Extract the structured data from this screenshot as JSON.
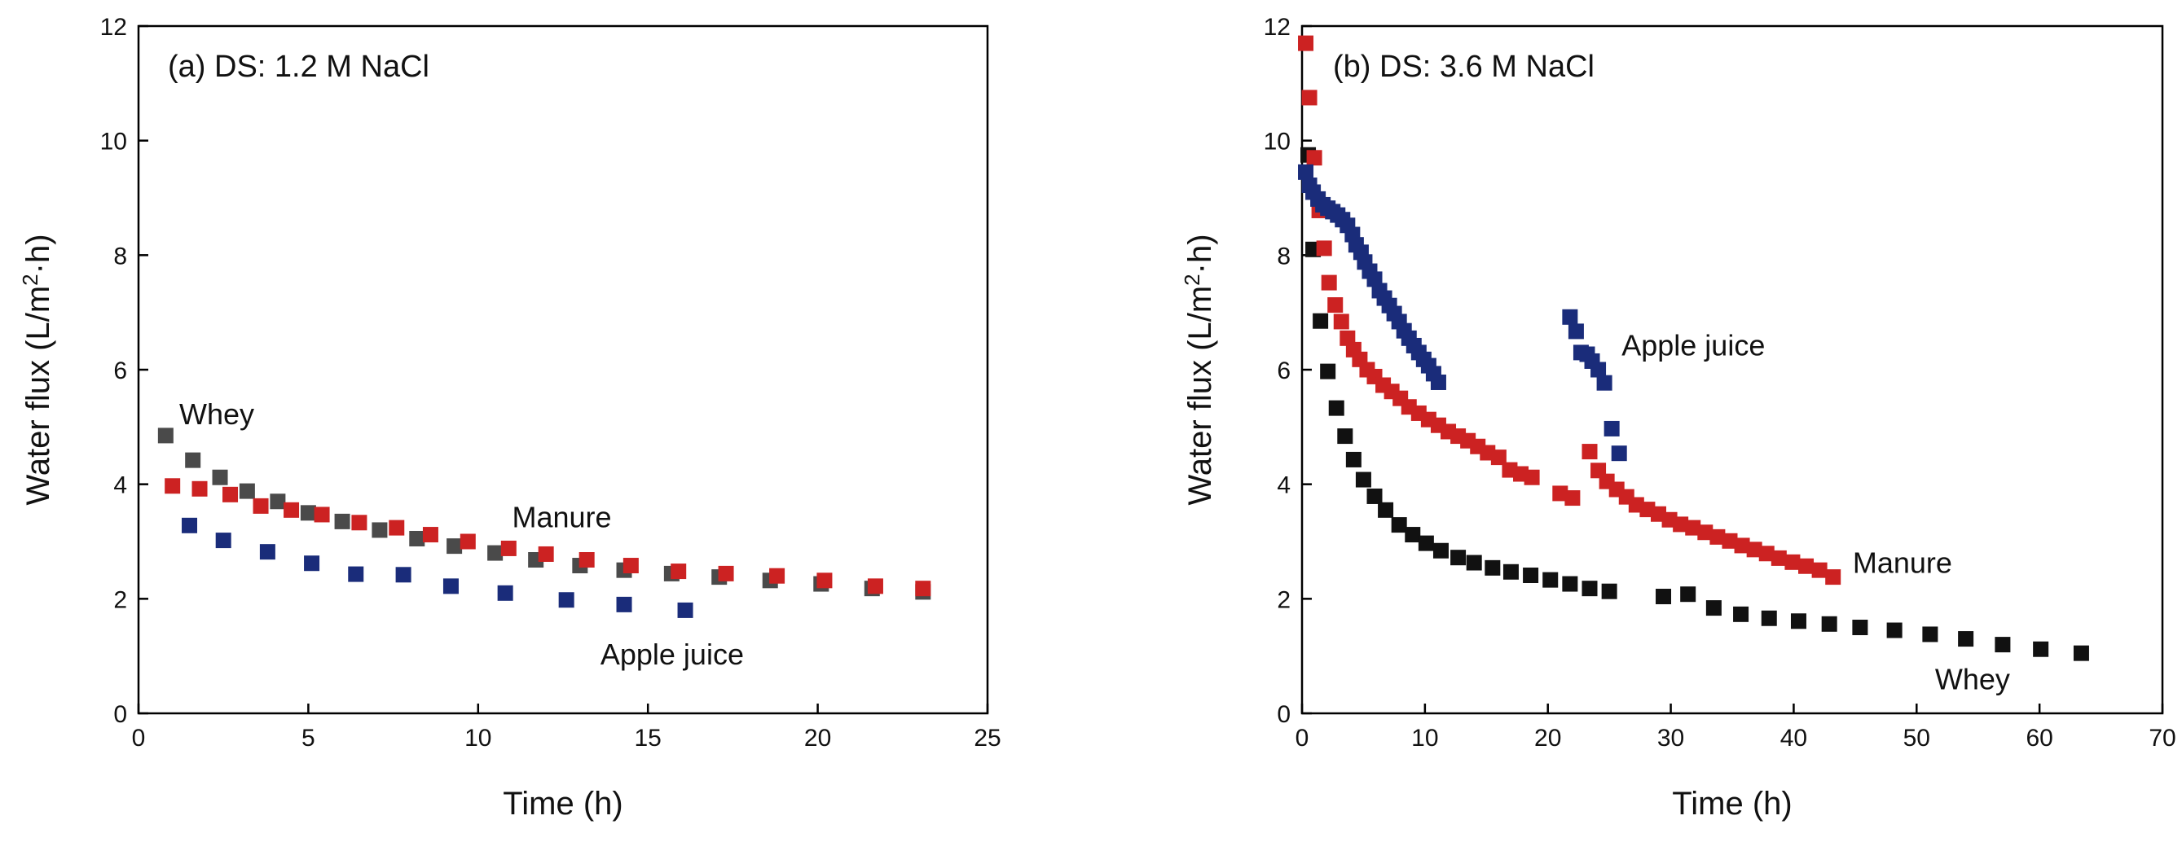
{
  "chart_data": [
    {
      "type": "scatter",
      "title": "(a) DS: 1.2 M NaCl",
      "xlabel": "Time (h)",
      "ylabel_parts": [
        "Water flux (L/m",
        "2",
        "·h)"
      ],
      "xlim": [
        0,
        25
      ],
      "ylim": [
        0,
        12
      ],
      "xticks": [
        0,
        5,
        10,
        15,
        20,
        25
      ],
      "yticks": [
        0,
        2,
        4,
        6,
        8,
        10,
        12
      ],
      "grid": false,
      "series": [
        {
          "name": "Whey",
          "color": "#4a4a4a",
          "x": [
            0.8,
            1.6,
            2.4,
            3.2,
            4.1,
            5.0,
            6.0,
            7.1,
            8.2,
            9.3,
            10.5,
            11.7,
            13.0,
            14.3,
            15.7,
            17.1,
            18.6,
            20.1,
            21.6,
            23.1
          ],
          "y": [
            4.85,
            4.42,
            4.12,
            3.88,
            3.7,
            3.5,
            3.35,
            3.2,
            3.05,
            2.92,
            2.8,
            2.68,
            2.58,
            2.5,
            2.44,
            2.38,
            2.32,
            2.26,
            2.18,
            2.12
          ]
        },
        {
          "name": "Manure",
          "color": "#cc2222",
          "x": [
            1.0,
            1.8,
            2.7,
            3.6,
            4.5,
            5.4,
            6.5,
            7.6,
            8.6,
            9.7,
            10.9,
            12.0,
            13.2,
            14.5,
            15.9,
            17.3,
            18.8,
            20.2,
            21.7,
            23.1
          ],
          "y": [
            3.97,
            3.92,
            3.82,
            3.62,
            3.55,
            3.47,
            3.33,
            3.24,
            3.12,
            3.0,
            2.88,
            2.78,
            2.68,
            2.58,
            2.48,
            2.44,
            2.4,
            2.32,
            2.22,
            2.18
          ]
        },
        {
          "name": "Apple juice",
          "color": "#1a2c7a",
          "x": [
            1.5,
            2.5,
            3.8,
            5.1,
            6.4,
            7.8,
            9.2,
            10.8,
            12.6,
            14.3,
            16.1
          ],
          "y": [
            3.28,
            3.02,
            2.82,
            2.62,
            2.43,
            2.42,
            2.22,
            2.1,
            1.98,
            1.9,
            1.8
          ]
        }
      ],
      "annotations": [
        {
          "text": "Whey",
          "x": 1.2,
          "y": 5.05
        },
        {
          "text": "Manure",
          "x": 11.0,
          "y": 3.25
        },
        {
          "text": "Apple juice",
          "x": 13.6,
          "y": 0.85
        }
      ]
    },
    {
      "type": "scatter",
      "title": "(b) DS: 3.6 M NaCl",
      "xlabel": "Time (h)",
      "ylabel_parts": [
        "Water flux (L/m",
        "2",
        "·h)"
      ],
      "xlim": [
        0,
        70
      ],
      "ylim": [
        0,
        12
      ],
      "xticks": [
        0,
        10,
        20,
        30,
        40,
        50,
        60,
        70
      ],
      "yticks": [
        0,
        2,
        4,
        6,
        8,
        10,
        12
      ],
      "grid": false,
      "series": [
        {
          "name": "Whey",
          "color": "#111111",
          "x": [
            0.5,
            0.9,
            1.5,
            2.1,
            2.8,
            3.5,
            4.2,
            5.0,
            5.9,
            6.8,
            7.9,
            9.0,
            10.1,
            11.3,
            12.7,
            14.0,
            15.5,
            17.0,
            18.6,
            20.2,
            21.8,
            23.4,
            25.0,
            29.4,
            31.4,
            33.5,
            35.7,
            38.0,
            40.4,
            42.9,
            45.4,
            48.2,
            51.1,
            54.0,
            57.0,
            60.1,
            63.4
          ],
          "y": [
            9.75,
            8.1,
            6.85,
            5.97,
            5.33,
            4.84,
            4.43,
            4.08,
            3.79,
            3.55,
            3.29,
            3.12,
            2.97,
            2.84,
            2.72,
            2.63,
            2.54,
            2.47,
            2.41,
            2.33,
            2.26,
            2.18,
            2.13,
            2.04,
            2.08,
            1.84,
            1.73,
            1.66,
            1.61,
            1.56,
            1.5,
            1.45,
            1.38,
            1.3,
            1.2,
            1.12,
            1.05
          ]
        },
        {
          "name": "Manure",
          "color": "#cc2222",
          "x": [
            0.3,
            0.6,
            1.0,
            1.4,
            1.8,
            2.2,
            2.7,
            3.2,
            3.7,
            4.2,
            4.7,
            5.3,
            5.9,
            6.6,
            7.3,
            8.0,
            8.7,
            9.5,
            10.3,
            11.1,
            11.9,
            12.7,
            13.5,
            14.3,
            15.1,
            16.0,
            16.9,
            17.8,
            18.7,
            21.0,
            22.0,
            23.4,
            24.1,
            24.8,
            25.6,
            26.4,
            27.2,
            28.1,
            29.0,
            29.9,
            30.8,
            31.8,
            32.8,
            33.8,
            34.8,
            35.8,
            36.8,
            37.8,
            38.8,
            39.9,
            41.0,
            42.1,
            43.2
          ],
          "y": [
            11.7,
            10.75,
            9.7,
            8.78,
            8.12,
            7.52,
            7.13,
            6.84,
            6.55,
            6.35,
            6.18,
            6.0,
            5.88,
            5.73,
            5.62,
            5.5,
            5.35,
            5.24,
            5.13,
            5.03,
            4.92,
            4.84,
            4.76,
            4.66,
            4.55,
            4.47,
            4.25,
            4.18,
            4.12,
            3.84,
            3.76,
            4.57,
            4.24,
            4.05,
            3.91,
            3.78,
            3.64,
            3.56,
            3.48,
            3.38,
            3.3,
            3.24,
            3.16,
            3.08,
            3.01,
            2.93,
            2.86,
            2.79,
            2.71,
            2.64,
            2.57,
            2.5,
            2.38
          ]
        },
        {
          "name": "Apple juice",
          "color": "#1a2c7a",
          "x": [
            0.3,
            0.6,
            0.9,
            1.3,
            1.7,
            2.1,
            2.5,
            2.9,
            3.3,
            3.7,
            4.1,
            4.4,
            4.8,
            5.1,
            5.5,
            5.9,
            6.3,
            6.7,
            7.1,
            7.5,
            7.9,
            8.3,
            8.7,
            9.1,
            9.5,
            9.9,
            10.3,
            10.7,
            11.1,
            21.8,
            22.3,
            22.7,
            23.2,
            23.6,
            24.1,
            24.6,
            25.2,
            25.8
          ],
          "y": [
            9.45,
            9.22,
            9.1,
            8.98,
            8.88,
            8.82,
            8.76,
            8.7,
            8.62,
            8.52,
            8.36,
            8.18,
            8.05,
            7.88,
            7.72,
            7.58,
            7.38,
            7.25,
            7.12,
            6.98,
            6.84,
            6.68,
            6.55,
            6.42,
            6.3,
            6.18,
            6.07,
            5.93,
            5.78,
            6.92,
            6.67,
            6.3,
            6.27,
            6.15,
            6.0,
            5.77,
            4.97,
            4.54
          ]
        }
      ],
      "annotations": [
        {
          "text": "Apple juice",
          "x": 26.0,
          "y": 6.25
        },
        {
          "text": "Manure",
          "x": 44.8,
          "y": 2.45
        },
        {
          "text": "Whey",
          "x": 51.5,
          "y": 0.42
        }
      ]
    }
  ]
}
